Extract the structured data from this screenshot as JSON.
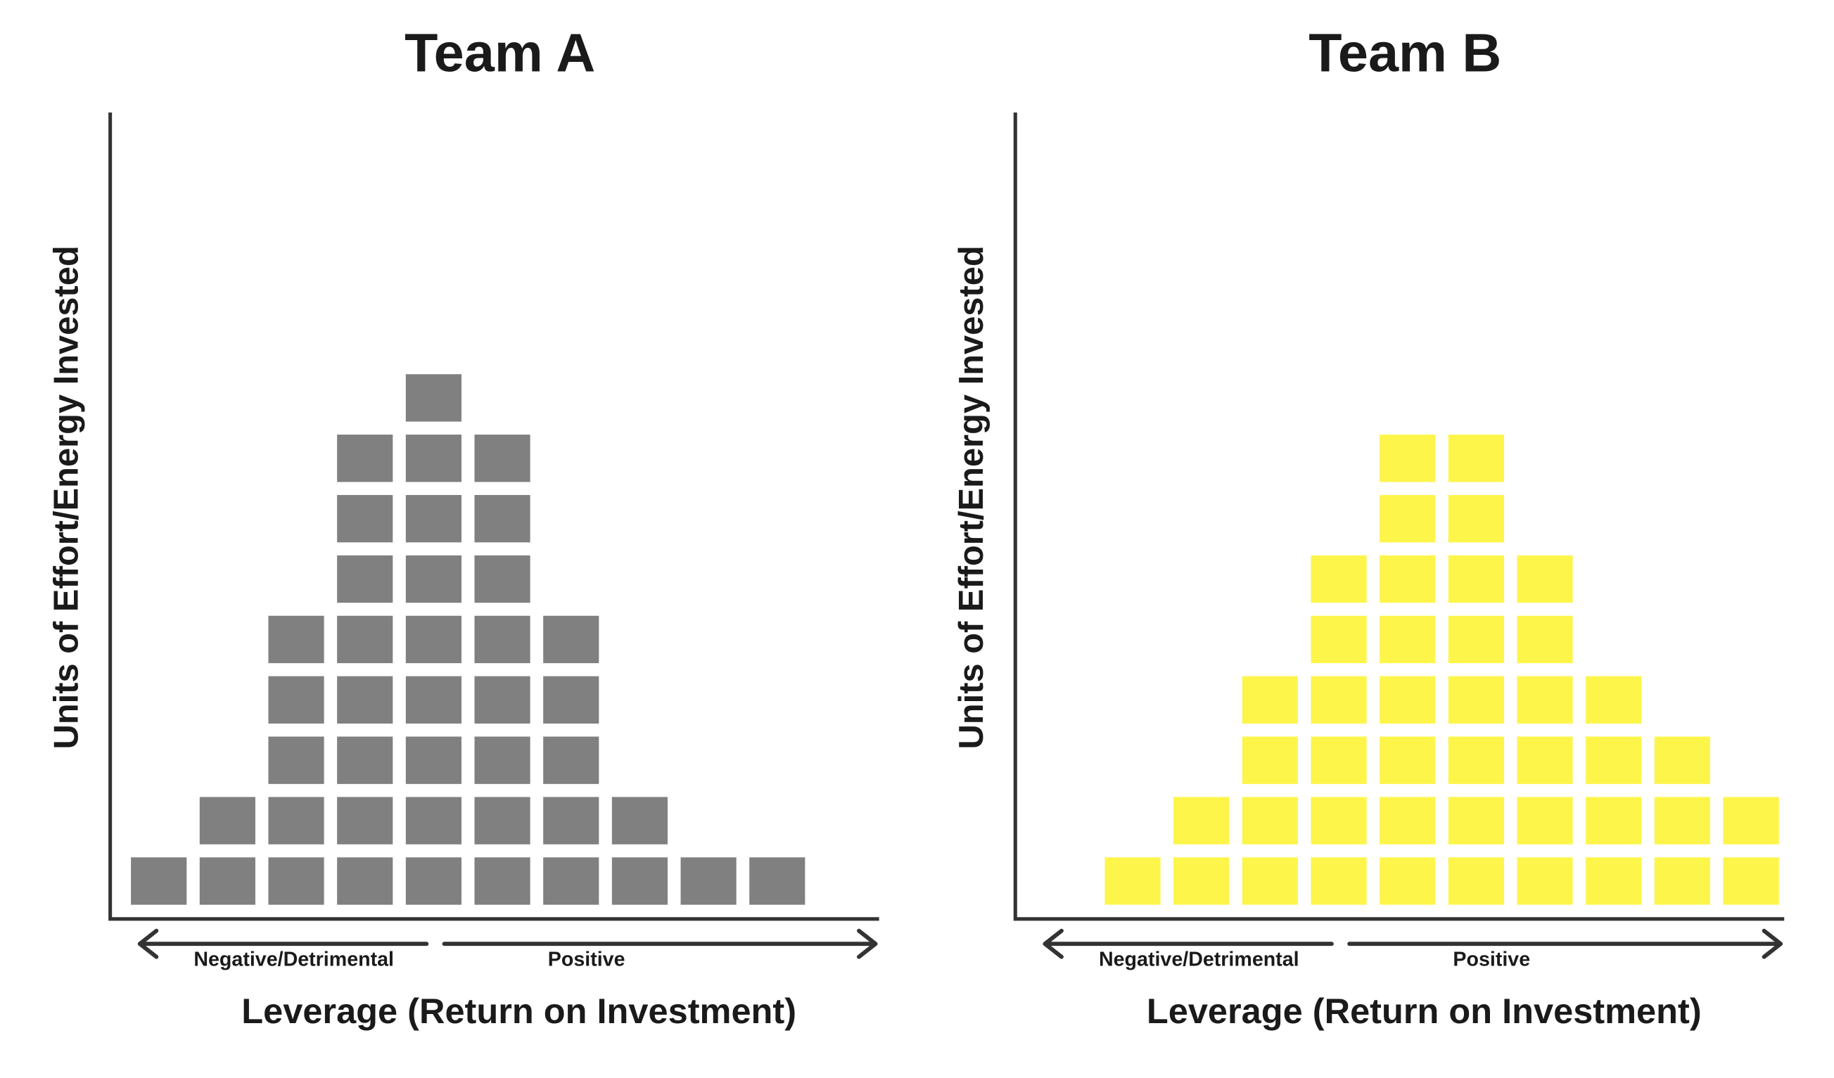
{
  "chart_data": [
    {
      "type": "unit-stack",
      "title": "Team A",
      "y_label": "Units of Effort/Energy Invested",
      "x_label": "Leverage (Return on Investment)",
      "x_left_label": "Negative/Detrimental",
      "x_right_label": "Positive",
      "categories": [
        null,
        null,
        null,
        null,
        null,
        null,
        null,
        null,
        null,
        null,
        null
      ],
      "values": [
        1,
        2,
        5,
        8,
        9,
        8,
        5,
        2,
        1,
        1,
        0
      ],
      "color": "#808080"
    },
    {
      "type": "unit-stack",
      "title": "Team B",
      "y_label": "Units of Effort/Energy Invested",
      "x_label": "Leverage (Return on Investment)",
      "x_left_label": "Negative/Detrimental",
      "x_right_label": "Positive",
      "categories": [
        null,
        null,
        null,
        null,
        null,
        null,
        null,
        null,
        null,
        null,
        null
      ],
      "values": [
        0,
        1,
        2,
        4,
        6,
        8,
        8,
        6,
        4,
        3,
        2
      ],
      "color": "#fdf54a"
    }
  ]
}
